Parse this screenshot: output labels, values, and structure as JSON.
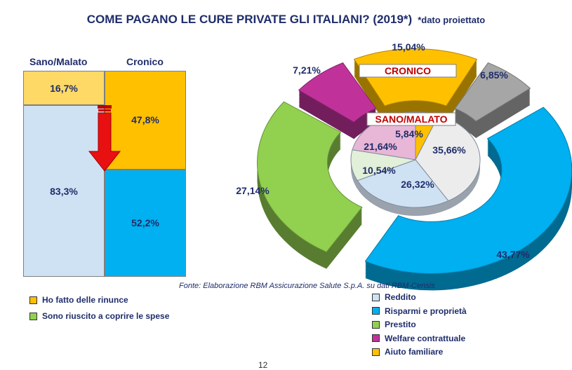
{
  "title": "COME PAGANO LE CURE PRIVATE GLI ITALIANI? (2019*)",
  "title_note": "*dato proiettato",
  "source": "Fonte: Elaborazione RBM Assicurazione Salute S.p.A. su dati RBM-Censis",
  "page_number": "12",
  "colors": {
    "title": "#1f2d6b",
    "rinunce": "#ffc000",
    "coprire": "#92d050",
    "reddito": "#cfe2f3",
    "risparmi": "#00b0f0",
    "prestito": "#92d050",
    "welfare": "#c0329a",
    "aiuto": "#ffc000",
    "other": "#a6a6a6",
    "arrow": "#e81010",
    "ring_label": "#c00000"
  },
  "chart_data": [
    {
      "type": "bar",
      "subtype": "100% stacked",
      "categories": [
        "Sano/Malato",
        "Cronico"
      ],
      "series": [
        {
          "name": "Ho fatto delle rinunce",
          "values": [
            16.7,
            47.8
          ],
          "labels": [
            "16,7%",
            "47,8%"
          ]
        },
        {
          "name": "Sono riuscito a coprire le spese",
          "values": [
            83.3,
            52.2
          ],
          "labels": [
            "83,3%",
            "52,2%"
          ]
        }
      ],
      "legend": [
        "Ho fatto delle rinunce",
        "Sono riuscito a coprire le spese"
      ],
      "legend_placement": "bottom"
    },
    {
      "type": "pie",
      "subtype": "exploded 3D doughnut",
      "rings": [
        {
          "name": "CRONICO",
          "slices": [
            {
              "category": "Reddito",
              "value": 6.85,
              "label": "6,85%",
              "color_key": "other"
            },
            {
              "category": "Risparmi e proprietà",
              "value": 43.77,
              "label": "43,77%",
              "color_key": "risparmi"
            },
            {
              "category": "Prestito",
              "value": 27.14,
              "label": "27,14%",
              "color_key": "prestito"
            },
            {
              "category": "Welfare contrattuale",
              "value": 7.21,
              "label": "7,21%",
              "color_key": "welfare"
            },
            {
              "category": "Aiuto familiare",
              "value": 15.04,
              "label": "15,04%",
              "color_key": "aiuto"
            }
          ]
        },
        {
          "name": "SANO/MALATO",
          "slices": [
            {
              "category": "Reddito",
              "value": 35.66,
              "label": "35,66%",
              "color_key": "reddito_inner"
            },
            {
              "category": "Risparmi e proprietà",
              "value": 26.32,
              "label": "26,32%",
              "color_key": "reddito"
            },
            {
              "category": "Prestito",
              "value": 10.54,
              "label": "10,54%",
              "color_key": "prestito_light"
            },
            {
              "category": "Welfare contrattuale",
              "value": 21.64,
              "label": "21,64%",
              "color_key": "welfare_light"
            },
            {
              "category": "Aiuto familiare",
              "value": 5.84,
              "label": "5,84%",
              "color_key": "aiuto"
            }
          ]
        }
      ],
      "legend": [
        "Reddito",
        "Risparmi e proprietà",
        "Prestito",
        "Welfare contrattuale",
        "Aiuto familiare"
      ],
      "legend_placement": "bottom-right"
    }
  ]
}
